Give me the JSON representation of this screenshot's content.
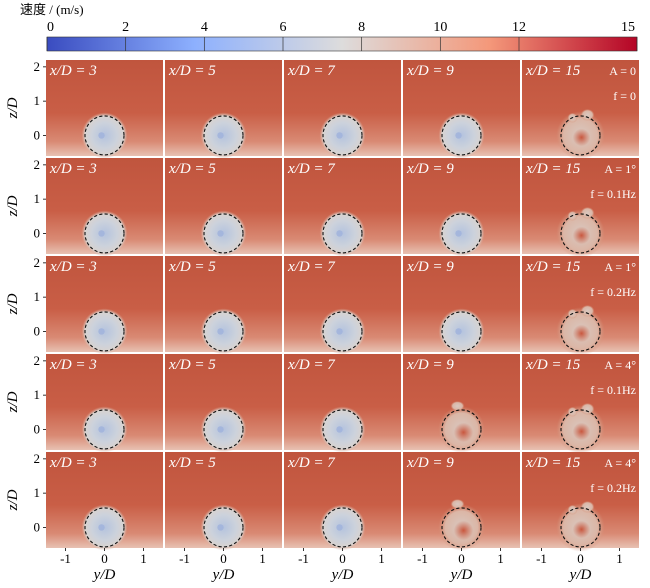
{
  "chart_data": {
    "type": "heatmap",
    "colorbar": {
      "title": "速度 / (m/s)",
      "ticks": [
        "0",
        "2",
        "4",
        "6",
        "8",
        "10",
        "12",
        "15"
      ],
      "tick_values": [
        0,
        2,
        4,
        6,
        8,
        10,
        12,
        15
      ],
      "range": [
        0,
        15
      ],
      "colors": [
        "#3a4cc0",
        "#8db0fe",
        "#dddcdc",
        "#f4987a",
        "#b40426"
      ]
    },
    "columns": [
      "x/D = 3",
      "x/D = 5",
      "x/D = 7",
      "x/D = 9",
      "x/D = 15"
    ],
    "column_x_over_D": [
      3,
      5,
      7,
      9,
      15
    ],
    "rows": [
      {
        "A_label": "A = 0",
        "f_label": "f = 0"
      },
      {
        "A_label": "A = 1°",
        "f_label": "f = 0.1Hz"
      },
      {
        "A_label": "A = 1°",
        "f_label": "f = 0.2Hz"
      },
      {
        "A_label": "A = 4°",
        "f_label": "f = 0.1Hz"
      },
      {
        "A_label": "A = 4°",
        "f_label": "f = 0.2Hz"
      }
    ],
    "xlabel": "y/D",
    "ylabel": "z/D",
    "x_ticks": [
      "-1",
      "0",
      "1"
    ],
    "y_ticks": [
      "0",
      "1",
      "2"
    ],
    "xlim": [
      -1.5,
      1.5
    ],
    "ylim": [
      -0.6,
      2.2
    ],
    "background_speed": 13,
    "wake_speed_min": 6
  }
}
